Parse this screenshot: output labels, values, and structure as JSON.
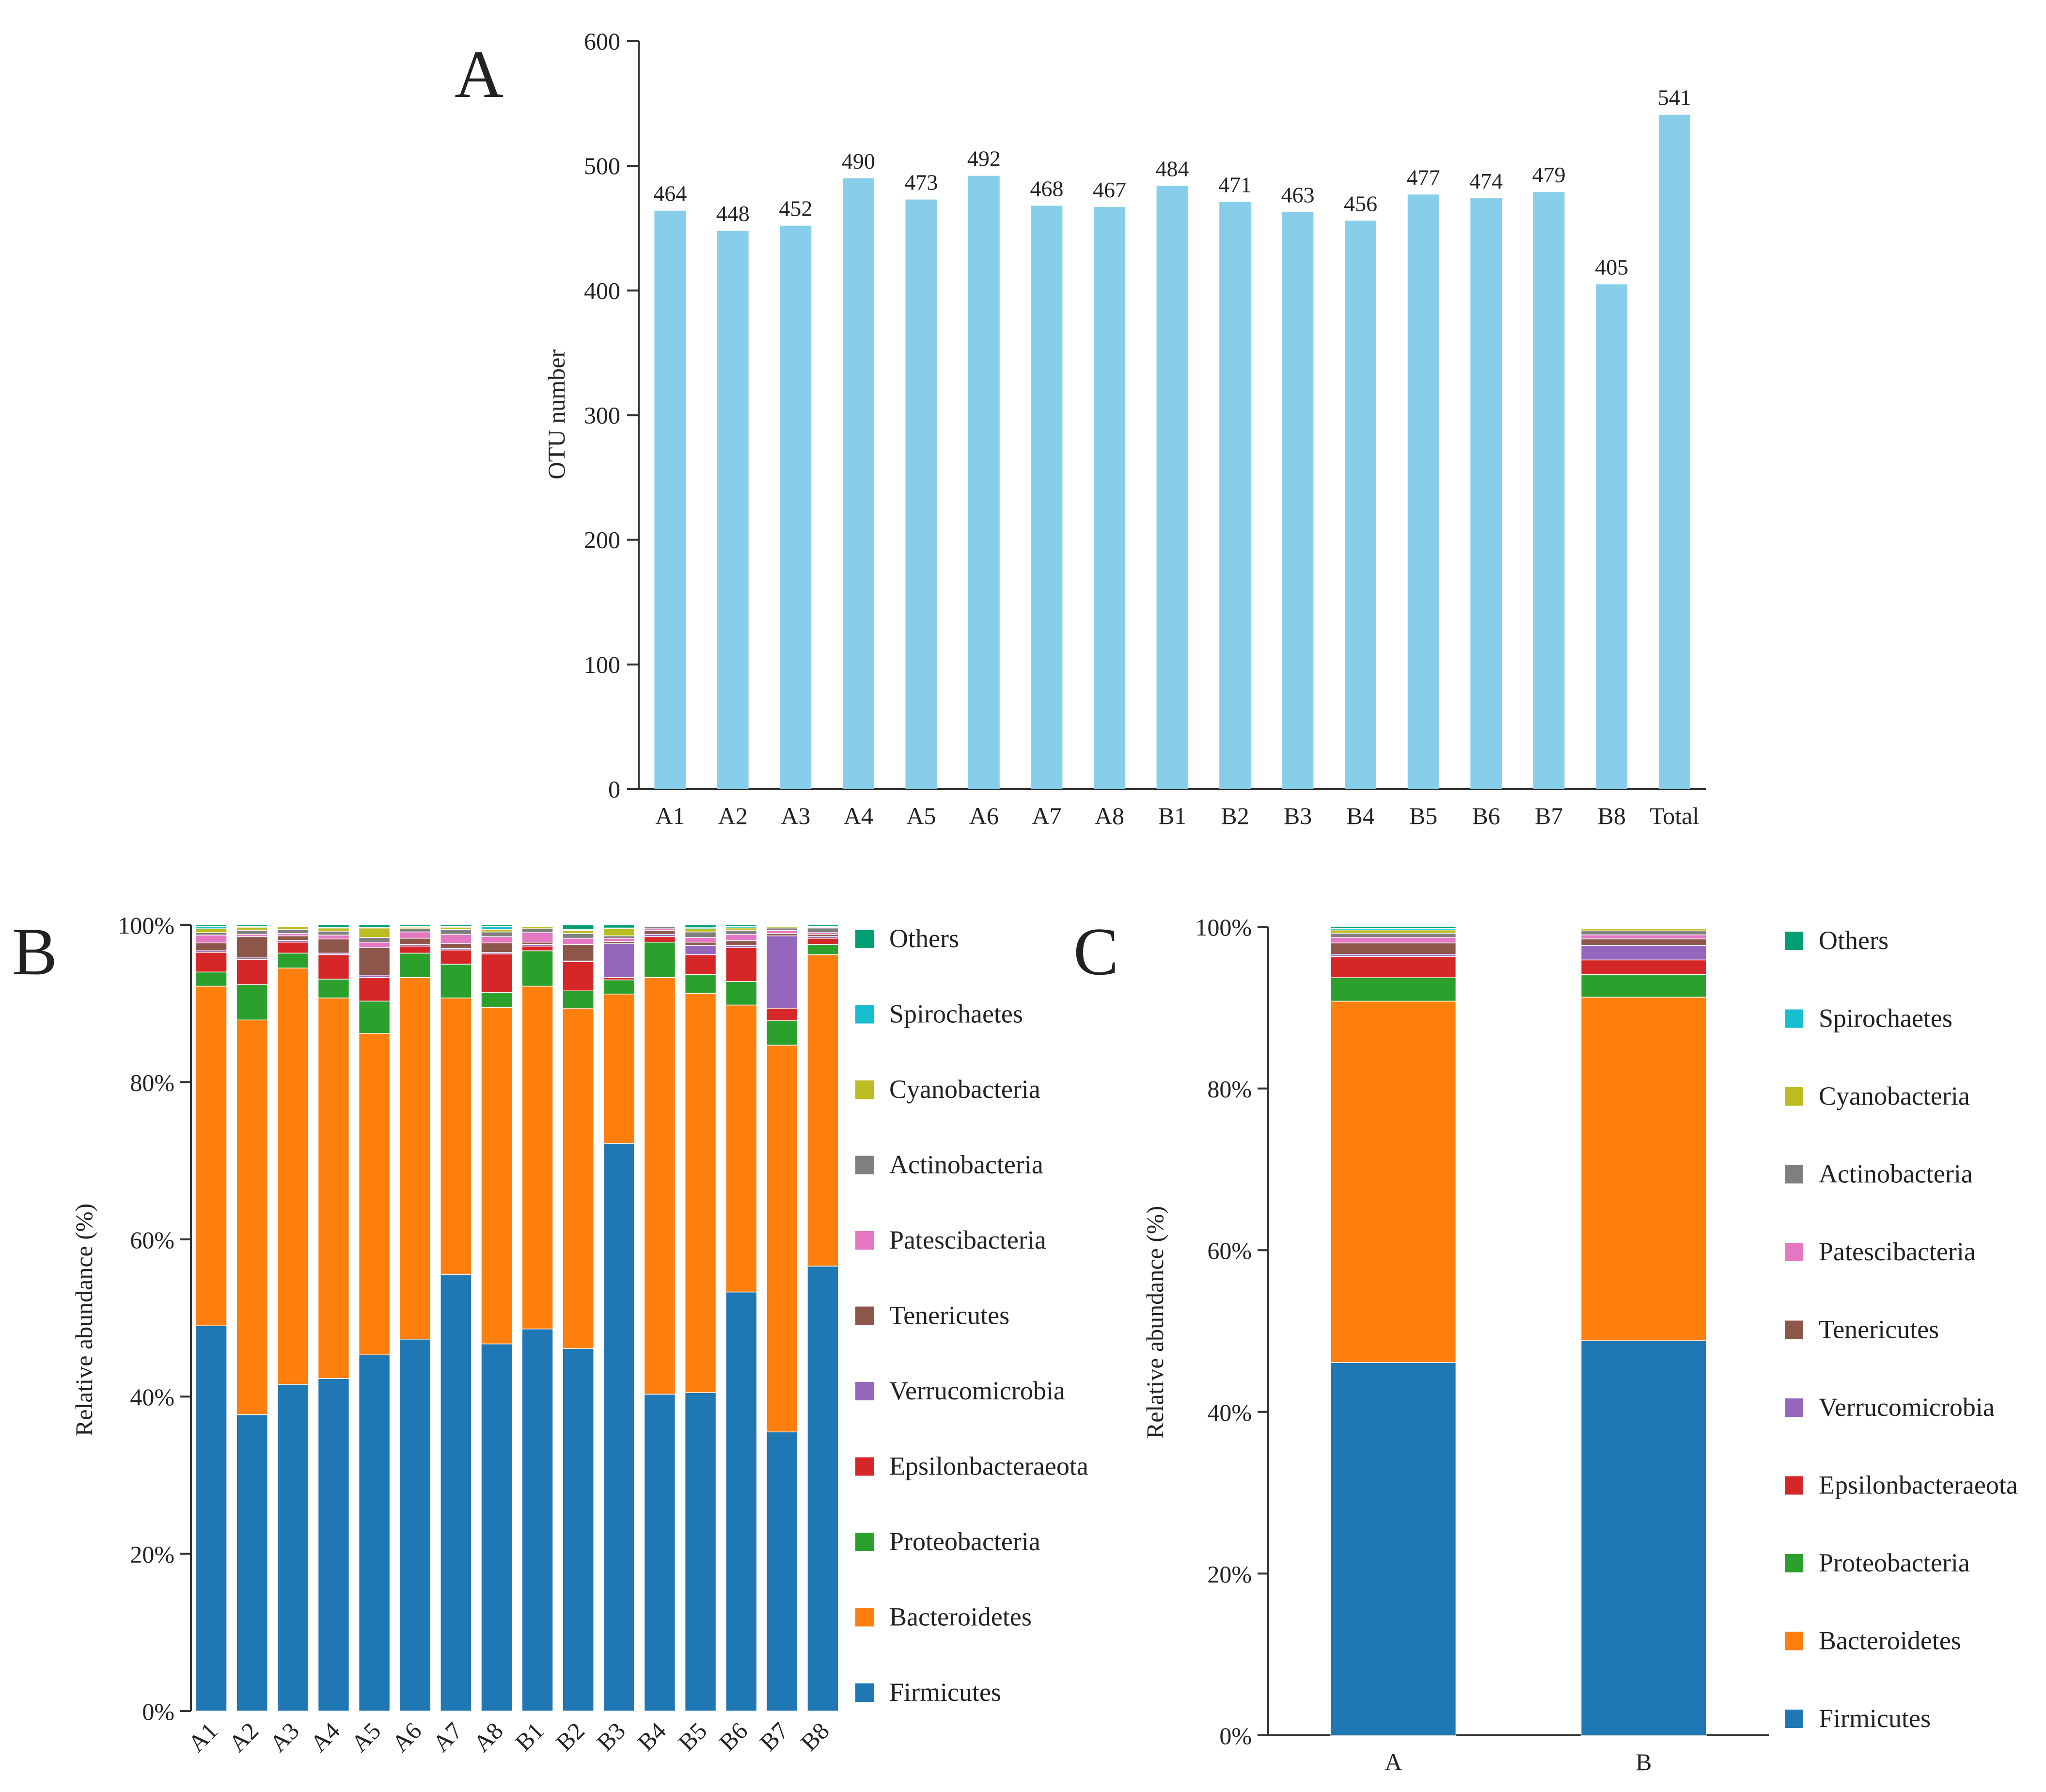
{
  "figure": {
    "panel_letters": [
      "A",
      "B",
      "C"
    ]
  },
  "chart_data": [
    {
      "panel": "A",
      "type": "bar",
      "title": "",
      "xlabel": "",
      "ylabel": "OTU number",
      "ylim": [
        0,
        600
      ],
      "yticks": [
        0,
        100,
        200,
        300,
        400,
        500,
        600
      ],
      "color": "#87ceeb",
      "categories": [
        "A1",
        "A2",
        "A3",
        "A4",
        "A5",
        "A6",
        "A7",
        "A8",
        "B1",
        "B2",
        "B3",
        "B4",
        "B5",
        "B6",
        "B7",
        "B8",
        "Total"
      ],
      "values": [
        464,
        448,
        452,
        490,
        473,
        492,
        468,
        467,
        484,
        471,
        463,
        456,
        477,
        474,
        479,
        405,
        541
      ]
    },
    {
      "panel": "B",
      "type": "stacked-bar",
      "xlabel": "",
      "ylabel": "Relative abundance (%)",
      "ylim": [
        0,
        100
      ],
      "yticks": [
        "0%",
        "20%",
        "40%",
        "60%",
        "80%",
        "100%"
      ],
      "categories": [
        "A1",
        "A2",
        "A3",
        "A4",
        "A5",
        "A6",
        "A7",
        "A8",
        "B1",
        "B2",
        "B3",
        "B4",
        "B5",
        "B6",
        "B7",
        "B8"
      ],
      "series": [
        {
          "name": "Firmicutes",
          "color": "#1f77b4",
          "values": [
            49.0,
            37.7,
            41.6,
            42.3,
            45.3,
            47.3,
            55.5,
            46.7,
            48.6,
            46.1,
            72.2,
            40.3,
            40.5,
            53.3,
            35.5,
            56.6
          ]
        },
        {
          "name": "Bacteroidetes",
          "color": "#ff7f0e",
          "values": [
            43.2,
            50.2,
            53.0,
            48.4,
            40.9,
            46.0,
            35.2,
            42.8,
            43.6,
            43.3,
            19.0,
            53.0,
            50.8,
            36.5,
            49.2,
            39.6
          ]
        },
        {
          "name": "Proteobacteria",
          "color": "#2ca02c",
          "values": [
            1.8,
            4.5,
            1.9,
            2.4,
            4.1,
            3.1,
            4.3,
            1.9,
            4.5,
            2.2,
            1.8,
            4.5,
            2.4,
            3.0,
            3.1,
            1.3
          ]
        },
        {
          "name": "Epsilonbacteraeota",
          "color": "#d62728",
          "values": [
            2.5,
            3.2,
            1.4,
            3.1,
            3.0,
            0.9,
            1.8,
            4.9,
            0.6,
            3.7,
            0.3,
            0.7,
            2.5,
            4.3,
            1.6,
            0.8
          ]
        },
        {
          "name": "Verrucomicrobia",
          "color": "#9467bd",
          "values": [
            0.2,
            0.2,
            0.2,
            0.2,
            0.3,
            0.2,
            0.2,
            0.2,
            0.2,
            0.1,
            4.3,
            0.3,
            1.2,
            0.3,
            9.2,
            0.2
          ]
        },
        {
          "name": "Tenericutes",
          "color": "#8c564b",
          "values": [
            1.0,
            2.7,
            0.6,
            1.8,
            3.5,
            0.8,
            0.6,
            1.2,
            0.3,
            2.1,
            0.3,
            0.5,
            0.4,
            0.6,
            0.3,
            0.3
          ]
        },
        {
          "name": "Patescibacteria",
          "color": "#e377c2",
          "values": [
            1.0,
            0.3,
            0.3,
            0.5,
            0.7,
            0.8,
            1.2,
            0.8,
            1.2,
            0.8,
            0.4,
            0.2,
            0.6,
            0.8,
            0.4,
            0.2
          ]
        },
        {
          "name": "Actinobacteria",
          "color": "#7f7f7f",
          "values": [
            0.3,
            0.5,
            0.5,
            0.5,
            0.6,
            0.4,
            0.6,
            0.6,
            0.5,
            0.6,
            0.3,
            0.3,
            0.7,
            0.5,
            0.3,
            0.6
          ]
        },
        {
          "name": "Cyanobacteria",
          "color": "#bcbd22",
          "values": [
            0.5,
            0.4,
            0.4,
            0.4,
            1.2,
            0.2,
            0.3,
            0.3,
            0.3,
            0.4,
            0.9,
            0.1,
            0.4,
            0.3,
            0.2,
            0.1
          ]
        },
        {
          "name": "Spirochaetes",
          "color": "#17becf",
          "values": [
            0.3,
            0.1,
            0.1,
            0.1,
            0.1,
            0.1,
            0.1,
            0.4,
            0.1,
            0.1,
            0.1,
            0.1,
            0.2,
            0.2,
            0.1,
            0.1
          ]
        },
        {
          "name": "Others",
          "color": "#009e73",
          "values": [
            0.2,
            0.2,
            0.1,
            0.3,
            0.3,
            0.2,
            0.2,
            0.2,
            0.1,
            0.6,
            0.4,
            0.0,
            0.3,
            0.2,
            0.1,
            0.2
          ]
        }
      ]
    },
    {
      "panel": "C",
      "type": "stacked-bar",
      "xlabel": "",
      "ylabel": "Relative abundance (%)",
      "ylim": [
        0,
        100
      ],
      "yticks": [
        "0%",
        "20%",
        "40%",
        "60%",
        "80%",
        "100%"
      ],
      "categories": [
        "A",
        "B"
      ],
      "series": [
        {
          "name": "Firmicutes",
          "color": "#1f77b4",
          "values": [
            46.1,
            48.8
          ]
        },
        {
          "name": "Bacteroidetes",
          "color": "#ff7f0e",
          "values": [
            44.7,
            42.5
          ]
        },
        {
          "name": "Proteobacteria",
          "color": "#2ca02c",
          "values": [
            2.9,
            2.8
          ]
        },
        {
          "name": "Epsilonbacteraeota",
          "color": "#d62728",
          "values": [
            2.6,
            1.8
          ]
        },
        {
          "name": "Verrucomicrobia",
          "color": "#9467bd",
          "values": [
            0.3,
            1.8
          ]
        },
        {
          "name": "Tenericutes",
          "color": "#8c564b",
          "values": [
            1.4,
            0.8
          ]
        },
        {
          "name": "Patescibacteria",
          "color": "#e377c2",
          "values": [
            0.7,
            0.5
          ]
        },
        {
          "name": "Actinobacteria",
          "color": "#7f7f7f",
          "values": [
            0.5,
            0.5
          ]
        },
        {
          "name": "Cyanobacteria",
          "color": "#bcbd22",
          "values": [
            0.4,
            0.3
          ]
        },
        {
          "name": "Spirochaetes",
          "color": "#17becf",
          "values": [
            0.2,
            0.1
          ]
        },
        {
          "name": "Others",
          "color": "#009e73",
          "values": [
            0.2,
            0.1
          ]
        }
      ]
    }
  ]
}
